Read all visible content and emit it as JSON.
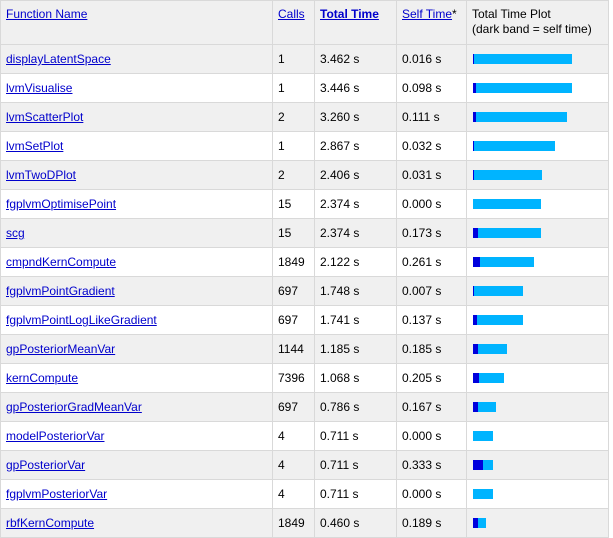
{
  "header": {
    "function_name": "Function Name",
    "calls": "Calls",
    "total_time": "Total Time",
    "self_time": "Self Time",
    "self_time_marker": "*",
    "plot_title": "Total Time Plot",
    "plot_subtitle": "(dark band = self time)"
  },
  "colors": {
    "total_bar": "#00b4ff",
    "self_bar": "#0000dd"
  },
  "plot_max_seconds": 4.53,
  "rows": [
    {
      "name": "displayLatentSpace",
      "calls": "1",
      "total": "3.462 s",
      "self": "0.016 s",
      "total_s": 3.462,
      "self_s": 0.016
    },
    {
      "name": "lvmVisualise",
      "calls": "1",
      "total": "3.446 s",
      "self": "0.098 s",
      "total_s": 3.446,
      "self_s": 0.098
    },
    {
      "name": "lvmScatterPlot",
      "calls": "2",
      "total": "3.260 s",
      "self": "0.111 s",
      "total_s": 3.26,
      "self_s": 0.111
    },
    {
      "name": "lvmSetPlot",
      "calls": "1",
      "total": "2.867 s",
      "self": "0.032 s",
      "total_s": 2.867,
      "self_s": 0.032
    },
    {
      "name": "lvmTwoDPlot",
      "calls": "2",
      "total": "2.406 s",
      "self": "0.031 s",
      "total_s": 2.406,
      "self_s": 0.031
    },
    {
      "name": "fgplvmOptimisePoint",
      "calls": "15",
      "total": "2.374 s",
      "self": "0.000 s",
      "total_s": 2.374,
      "self_s": 0.0
    },
    {
      "name": "scg",
      "calls": "15",
      "total": "2.374 s",
      "self": "0.173 s",
      "total_s": 2.374,
      "self_s": 0.173
    },
    {
      "name": "cmpndKernCompute",
      "calls": "1849",
      "total": "2.122 s",
      "self": "0.261 s",
      "total_s": 2.122,
      "self_s": 0.261
    },
    {
      "name": "fgplvmPointGradient",
      "calls": "697",
      "total": "1.748 s",
      "self": "0.007 s",
      "total_s": 1.748,
      "self_s": 0.007
    },
    {
      "name": "fgplvmPointLogLikeGradient",
      "calls": "697",
      "total": "1.741 s",
      "self": "0.137 s",
      "total_s": 1.741,
      "self_s": 0.137
    },
    {
      "name": "gpPosteriorMeanVar",
      "calls": "1144",
      "total": "1.185 s",
      "self": "0.185 s",
      "total_s": 1.185,
      "self_s": 0.185
    },
    {
      "name": "kernCompute",
      "calls": "7396",
      "total": "1.068 s",
      "self": "0.205 s",
      "total_s": 1.068,
      "self_s": 0.205
    },
    {
      "name": "gpPosteriorGradMeanVar",
      "calls": "697",
      "total": "0.786 s",
      "self": "0.167 s",
      "total_s": 0.786,
      "self_s": 0.167
    },
    {
      "name": "modelPosteriorVar",
      "calls": "4",
      "total": "0.711 s",
      "self": "0.000 s",
      "total_s": 0.711,
      "self_s": 0.0
    },
    {
      "name": "gpPosteriorVar",
      "calls": "4",
      "total": "0.711 s",
      "self": "0.333 s",
      "total_s": 0.711,
      "self_s": 0.333
    },
    {
      "name": "fgplvmPosteriorVar",
      "calls": "4",
      "total": "0.711 s",
      "self": "0.000 s",
      "total_s": 0.711,
      "self_s": 0.0
    },
    {
      "name": "rbfKernCompute",
      "calls": "1849",
      "total": "0.460 s",
      "self": "0.189 s",
      "total_s": 0.46,
      "self_s": 0.189
    }
  ]
}
